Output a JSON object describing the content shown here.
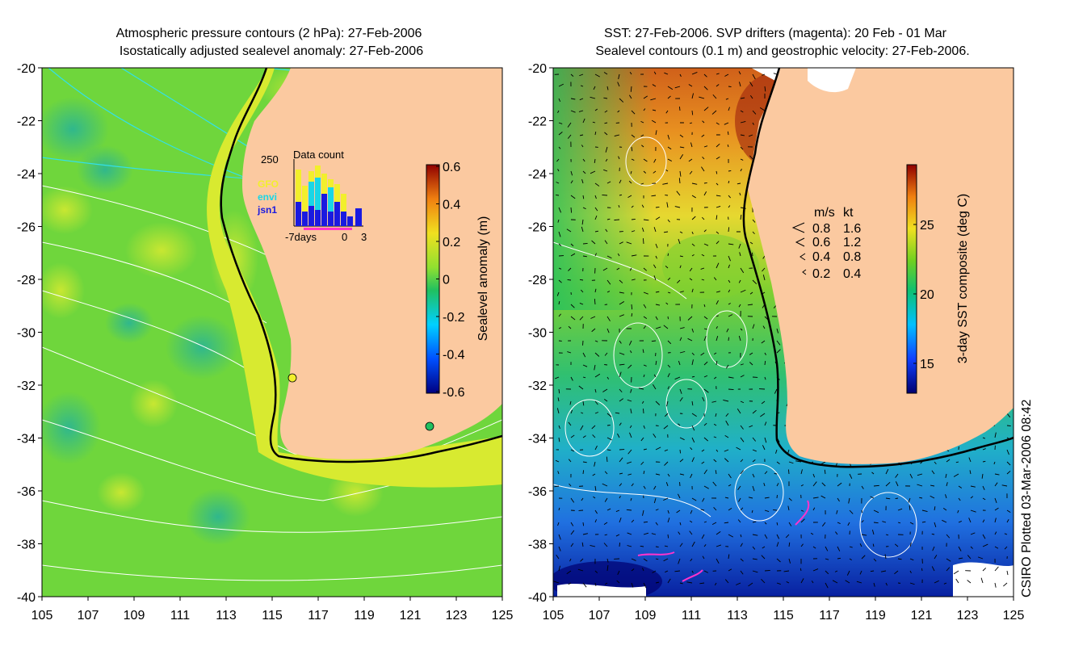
{
  "left_panel": {
    "title_line1": "Atmospheric pressure contours (2 hPa): 27-Feb-2006",
    "title_line2": "Isostatically adjusted sealevel anomaly: 27-Feb-2006",
    "colorbar": {
      "label": "Sealevel anomaly (m)",
      "ticks": [
        "0.6",
        "0.4",
        "0.2",
        "0",
        "-0.2",
        "-0.4",
        "-0.6"
      ]
    },
    "inset": {
      "title": "Data count",
      "ymax_label": "250",
      "x_labels": [
        "-7days",
        "0",
        "3"
      ],
      "satellites": [
        {
          "name": "GFO",
          "color": "#f2ef2c"
        },
        {
          "name": "envi",
          "color": "#19d6e6"
        },
        {
          "name": "jsn1",
          "color": "#1a1ae0"
        }
      ]
    }
  },
  "right_panel": {
    "title_line1": "SST: 27-Feb-2006. SVP drifters (magenta): 20 Feb - 01 Mar",
    "title_line2": "Sealevel contours (0.1 m) and geostrophic velocity: 27-Feb-2006.",
    "colorbar": {
      "label": "3-day SST composite (deg C)",
      "ticks": [
        "25",
        "20",
        "15"
      ]
    },
    "speed_legend": {
      "header_ms": "m/s",
      "header_kt": "kt",
      "rows": [
        {
          "ms": "0.8",
          "kt": "1.6"
        },
        {
          "ms": "0.6",
          "kt": "1.2"
        },
        {
          "ms": "0.4",
          "kt": "0.8"
        },
        {
          "ms": "0.2",
          "kt": "0.4"
        }
      ]
    }
  },
  "axes": {
    "lat_labels": [
      "-20",
      "-22",
      "-24",
      "-26",
      "-28",
      "-30",
      "-32",
      "-34",
      "-36",
      "-38",
      "-40"
    ],
    "lon_labels": [
      "105",
      "107",
      "109",
      "111",
      "113",
      "115",
      "117",
      "119",
      "121",
      "123",
      "125"
    ]
  },
  "credit": "CSIRO Plotted 03-Mar-2006 08:42",
  "colors": {
    "land": "#fbc9a0",
    "ocean_sla": "#6fd63c",
    "arrow": "#000000",
    "contour": "#ffffff",
    "pressure_contour": "#33e0e8",
    "drifter": "#ff33cc"
  }
}
